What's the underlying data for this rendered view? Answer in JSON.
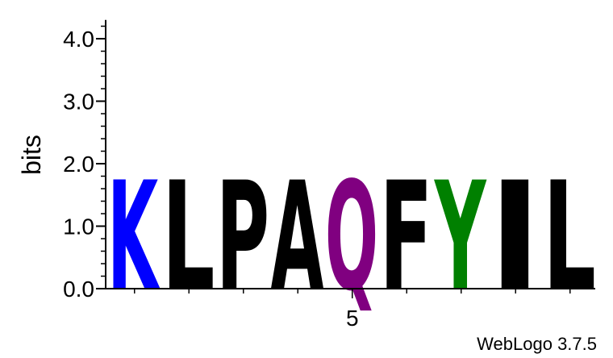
{
  "chart_data": {
    "type": "sequence-logo",
    "ylabel": "bits",
    "ylim": [
      0,
      4.3
    ],
    "y_ticks": [
      {
        "value": 0,
        "label": "0.0"
      },
      {
        "value": 1,
        "label": "1.0"
      },
      {
        "value": 2,
        "label": "2.0"
      },
      {
        "value": 3,
        "label": "3.0"
      },
      {
        "value": 4,
        "label": "4.0"
      }
    ],
    "x_tick_labels": [
      {
        "position": 5,
        "label": "5"
      }
    ],
    "positions": [
      {
        "position": 1,
        "letter": "K",
        "bits": 1.75,
        "color": "#0000ff"
      },
      {
        "position": 2,
        "letter": "L",
        "bits": 1.75,
        "color": "#000000"
      },
      {
        "position": 3,
        "letter": "P",
        "bits": 1.75,
        "color": "#000000"
      },
      {
        "position": 4,
        "letter": "A",
        "bits": 1.75,
        "color": "#000000"
      },
      {
        "position": 5,
        "letter": "Q",
        "bits": 1.75,
        "color": "#800080"
      },
      {
        "position": 6,
        "letter": "F",
        "bits": 1.75,
        "color": "#000000"
      },
      {
        "position": 7,
        "letter": "Y",
        "bits": 1.75,
        "color": "#008000"
      },
      {
        "position": 8,
        "letter": "I",
        "bits": 1.75,
        "color": "#000000"
      },
      {
        "position": 9,
        "letter": "L",
        "bits": 1.75,
        "color": "#000000"
      }
    ]
  },
  "credit": "WebLogo 3.7.5"
}
